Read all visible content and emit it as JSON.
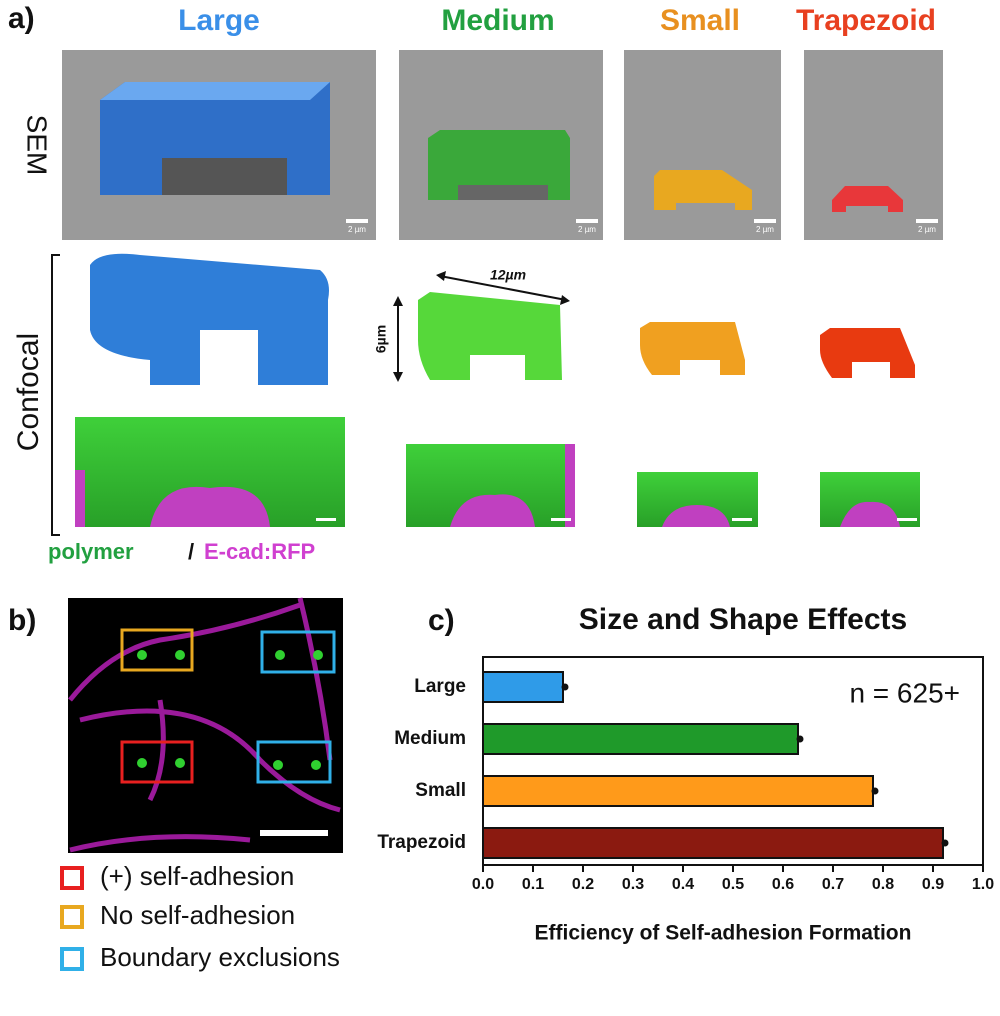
{
  "panel_a": {
    "label": "a)",
    "columns": [
      "Large",
      "Medium",
      "Small",
      "Trapezoid"
    ],
    "row_sem": "SEM",
    "row_confocal": "Confocal",
    "scale_labels": [
      "2 µm",
      "2 µm",
      "2 µm",
      "2 µm"
    ],
    "width_label": "12µm",
    "height_label": "6µm",
    "legend_polymer": "polymer",
    "legend_sep": "/",
    "legend_ecad": "E-cad:RFP"
  },
  "panel_b": {
    "label": "b)",
    "legend": [
      "(+) self-adhesion",
      "No self-adhesion",
      "Boundary exclusions"
    ]
  },
  "panel_c": {
    "label": "c)"
  },
  "chart_data": {
    "type": "bar",
    "orientation": "horizontal",
    "title": "Size and Shape Effects",
    "annotation": "n = 625+",
    "categories": [
      "Large",
      "Medium",
      "Small",
      "Trapezoid"
    ],
    "values": [
      0.16,
      0.63,
      0.78,
      0.92
    ],
    "colors": [
      "#2f9be8",
      "#1f9a2a",
      "#ff9a1a",
      "#8b1a10"
    ],
    "xlabel": "Efficiency of Self-adhesion Formation",
    "xlim": [
      0,
      1
    ],
    "xticks": [
      {
        "value": 0,
        "label": "0.0"
      },
      0.1,
      0.2,
      0.3,
      0.4,
      0.5,
      0.6,
      0.7,
      0.8,
      0.9,
      {
        "value": 1,
        "label": "1.0"
      }
    ]
  }
}
